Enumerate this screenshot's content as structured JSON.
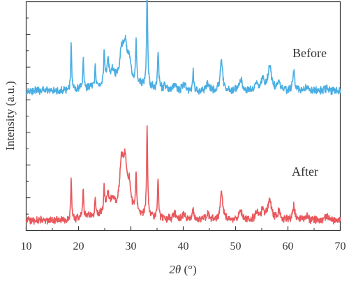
{
  "chart_data": {
    "type": "line",
    "title": "",
    "xlabel": "2θ (°)",
    "ylabel": "Intensity (a.u.)",
    "xlim": [
      10,
      70
    ],
    "xticks": [
      10,
      20,
      30,
      40,
      50,
      60,
      70
    ],
    "ylabel_ticks_shown": false,
    "grid": false,
    "legend": "none",
    "series": [
      {
        "name": "Before",
        "color": "#4aaee3",
        "baseline": 0.61,
        "peaks": [
          [
            12.2,
            0.012,
            0.07
          ],
          [
            15.6,
            0.006,
            0.1
          ],
          [
            18.6,
            0.215,
            0.1
          ],
          [
            20.9,
            0.125,
            0.11
          ],
          [
            23.2,
            0.09,
            0.1
          ],
          [
            24.9,
            0.135,
            0.12
          ],
          [
            25.6,
            0.09,
            0.25
          ],
          [
            26.5,
            0.05,
            0.4
          ],
          [
            28.2,
            0.12,
            0.4
          ],
          [
            28.9,
            0.15,
            0.45
          ],
          [
            29.7,
            0.09,
            0.35
          ],
          [
            31.0,
            0.175,
            0.12
          ],
          [
            33.1,
            0.43,
            0.12
          ],
          [
            35.2,
            0.175,
            0.12
          ],
          [
            36.5,
            0.015,
            0.3
          ],
          [
            38.4,
            0.025,
            0.3
          ],
          [
            40.2,
            0.03,
            0.3
          ],
          [
            41.9,
            0.08,
            0.12
          ],
          [
            44.7,
            0.03,
            0.35
          ],
          [
            47.3,
            0.13,
            0.28
          ],
          [
            51.0,
            0.045,
            0.35
          ],
          [
            54.0,
            0.03,
            0.35
          ],
          [
            55.2,
            0.045,
            0.35
          ],
          [
            56.5,
            0.11,
            0.4
          ],
          [
            58.3,
            0.05,
            0.25
          ],
          [
            61.1,
            0.09,
            0.22
          ],
          [
            63.7,
            0.02,
            0.3
          ],
          [
            67.5,
            0.015,
            0.3
          ]
        ]
      },
      {
        "name": "After",
        "color": "#e8585c",
        "baseline": 0.045,
        "peaks": [
          [
            18.6,
            0.185,
            0.1
          ],
          [
            20.9,
            0.135,
            0.11
          ],
          [
            23.2,
            0.08,
            0.1
          ],
          [
            24.9,
            0.11,
            0.12
          ],
          [
            25.6,
            0.09,
            0.25
          ],
          [
            26.5,
            0.05,
            0.4
          ],
          [
            28.2,
            0.19,
            0.4
          ],
          [
            28.9,
            0.2,
            0.45
          ],
          [
            29.7,
            0.09,
            0.35
          ],
          [
            31.0,
            0.175,
            0.12
          ],
          [
            33.1,
            0.38,
            0.12
          ],
          [
            35.2,
            0.17,
            0.12
          ],
          [
            38.4,
            0.03,
            0.3
          ],
          [
            40.2,
            0.03,
            0.3
          ],
          [
            41.9,
            0.06,
            0.12
          ],
          [
            44.7,
            0.03,
            0.35
          ],
          [
            47.3,
            0.12,
            0.28
          ],
          [
            51.0,
            0.04,
            0.35
          ],
          [
            54.0,
            0.03,
            0.35
          ],
          [
            55.2,
            0.045,
            0.35
          ],
          [
            56.5,
            0.085,
            0.4
          ],
          [
            58.3,
            0.04,
            0.25
          ],
          [
            61.1,
            0.065,
            0.22
          ],
          [
            63.7,
            0.02,
            0.3
          ],
          [
            67.5,
            0.015,
            0.3
          ]
        ]
      }
    ]
  }
}
